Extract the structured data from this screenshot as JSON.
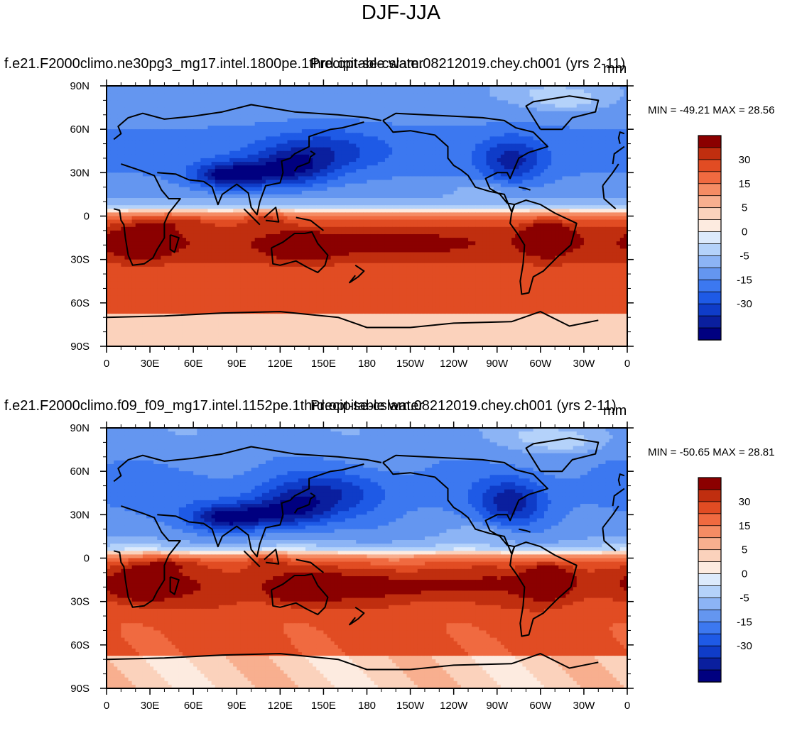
{
  "page": {
    "title": "DJF-JJA"
  },
  "colorbar": {
    "colors": [
      "#000080",
      "#0a1f9e",
      "#0f3cc8",
      "#1e5ae6",
      "#3c78f0",
      "#6496f0",
      "#8cb4f5",
      "#b4d2fa",
      "#dceafc",
      "#fdebe0",
      "#fbd2bc",
      "#f8af8f",
      "#f58c64",
      "#f06a40",
      "#e14c23",
      "#c02e0f",
      "#8b0000"
    ],
    "labels": [
      "30",
      "15",
      "5",
      "0",
      "-5",
      "-15",
      "-30"
    ]
  },
  "axes": {
    "x_ticks": [
      "0",
      "30E",
      "60E",
      "90E",
      "120E",
      "150E",
      "180",
      "150W",
      "120W",
      "90W",
      "60W",
      "30W",
      "0"
    ],
    "y_ticks": [
      "90N",
      "60N",
      "30N",
      "0",
      "30S",
      "60S",
      "90S"
    ]
  },
  "panels": [
    {
      "title_left": "f.e21.F2000climo.ne30pg3_mg17.intel.1800pe.1thrd.opt-se-cslam.08212019.chey.ch001 (yrs 2-11)",
      "title_center": "Precipitable water",
      "units": "mm",
      "minmax": "MIN = -49.21 MAX =  28.56",
      "variant": 0
    },
    {
      "title_left": "f.e21.F2000climo.f09_f09_mg17.intel.1152pe.1thrd.opt-se-cslam.08212019.chey.ch001 (yrs 2-11)",
      "title_center": "Precipitable water",
      "units": "mm",
      "minmax": "MIN = -50.65 MAX =  28.81",
      "variant": 1
    }
  ],
  "chart_data": [
    {
      "type": "heatmap",
      "title": "Precipitable water",
      "subtitle": "f.e21.F2000climo.ne30pg3_mg17.intel.1800pe.1thrd.opt-se-cslam.08212019.chey.ch001 (yrs 2-11)",
      "units": "mm",
      "min": -49.21,
      "max": 28.56,
      "xlim": [
        0,
        360
      ],
      "ylim": [
        -90,
        90
      ],
      "contour_levels": [
        -40,
        -35,
        -30,
        -25,
        -20,
        -15,
        -10,
        -5,
        -2,
        0,
        2,
        5,
        10,
        15,
        20,
        25,
        30,
        35
      ]
    },
    {
      "type": "heatmap",
      "title": "Precipitable water",
      "subtitle": "f.e21.F2000climo.f09_f09_mg17.intel.1152pe.1thrd.opt-se-cslam.08212019.chey.ch001 (yrs 2-11)",
      "units": "mm",
      "min": -50.65,
      "max": 28.81,
      "xlim": [
        0,
        360
      ],
      "ylim": [
        -90,
        90
      ],
      "contour_levels": [
        -40,
        -35,
        -30,
        -25,
        -20,
        -15,
        -10,
        -5,
        -2,
        0,
        2,
        5,
        10,
        15,
        20,
        25,
        30,
        35
      ]
    }
  ]
}
